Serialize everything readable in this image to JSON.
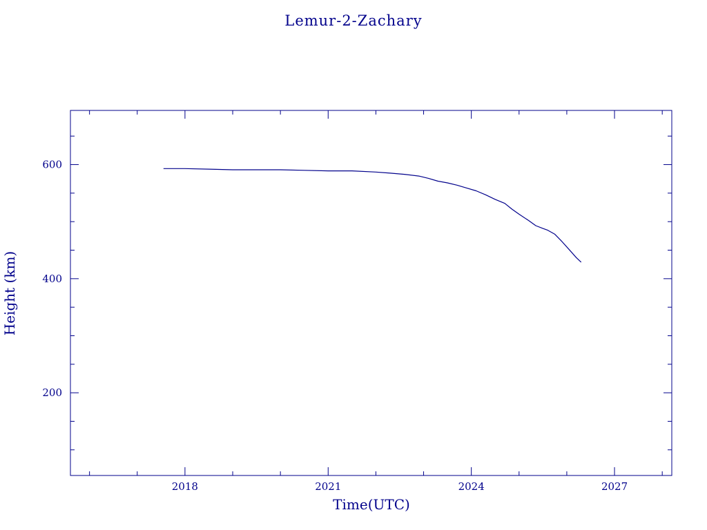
{
  "chart_data": {
    "type": "line",
    "title": "Lemur-2-Zachary",
    "xlabel": "Time(UTC)",
    "ylabel": "Height (km)",
    "xlim": [
      2015.6,
      2028.2
    ],
    "ylim": [
      55,
      695
    ],
    "x_ticks": [
      {
        "value": 2018,
        "label": "2018"
      },
      {
        "value": 2021,
        "label": "2021"
      },
      {
        "value": 2024,
        "label": "2024"
      },
      {
        "value": 2027,
        "label": "2027"
      }
    ],
    "y_ticks": [
      {
        "value": 200,
        "label": "200"
      },
      {
        "value": 400,
        "label": "400"
      },
      {
        "value": 600,
        "label": "600"
      }
    ],
    "grid": false,
    "series": [
      {
        "x": [
          2017.55,
          2018.0,
          2018.5,
          2019.0,
          2019.5,
          2020.0,
          2020.5,
          2021.0,
          2021.5,
          2022.0,
          2022.3,
          2022.6,
          2022.9,
          2023.1,
          2023.3,
          2023.5,
          2023.7,
          2023.9,
          2024.1,
          2024.3,
          2024.5,
          2024.7,
          2024.85,
          2025.0,
          2025.2,
          2025.35,
          2025.5,
          2025.6,
          2025.75,
          2025.9,
          2026.05,
          2026.2,
          2026.3
        ],
        "y": [
          593,
          593,
          592,
          591,
          591,
          591,
          590,
          589,
          589,
          587,
          585,
          583,
          580,
          576,
          571,
          568,
          564,
          559,
          554,
          547,
          539,
          532,
          522,
          513,
          502,
          493,
          488,
          485,
          478,
          465,
          451,
          437,
          429
        ]
      }
    ],
    "colors": {
      "ink": "#00008b",
      "background": "#ffffff"
    }
  }
}
